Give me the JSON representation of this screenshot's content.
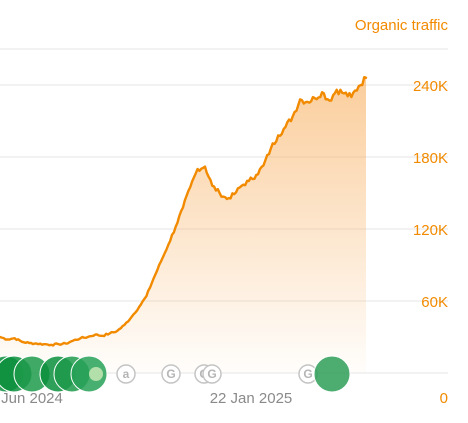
{
  "chart_data": {
    "type": "area",
    "ylabel": "Organic traffic",
    "y_ticks": [
      "240K",
      "180K",
      "120K",
      "60K",
      "0"
    ],
    "y_tick_values": [
      240000,
      180000,
      120000,
      60000,
      0
    ],
    "ylim": [
      0,
      270000
    ],
    "x_tick_labels": [
      "Jun 2024",
      "22 Jan 2025"
    ],
    "grid": true,
    "y_axis_position": "right",
    "color": "#f28a00",
    "series": [
      {
        "values": [
          30000,
          28000,
          29000,
          26000,
          25000,
          24500,
          24000,
          23500,
          24000,
          24500,
          27000,
          29000,
          30000,
          32000,
          31000,
          33000,
          35000,
          40000,
          47000,
          55000,
          64000,
          79000,
          93000,
          107000,
          122000,
          138000,
          155000,
          170000,
          172000,
          156000,
          150000,
          145000,
          149000,
          156000,
          160000,
          165000,
          173000,
          187000,
          198000,
          205000,
          214000,
          228000,
          226000,
          229000,
          234000,
          227000,
          236000,
          233000,
          230000,
          239000,
          246000
        ]
      }
    ],
    "markers": [
      {
        "kind": "update",
        "size": "large",
        "color": "#0a8f3c"
      },
      {
        "kind": "update",
        "size": "large",
        "color": "#0a8f3c"
      },
      {
        "kind": "update",
        "size": "large",
        "color": "#1d9a4b"
      },
      {
        "kind": "update",
        "size": "large",
        "color": "#0a8f3c"
      },
      {
        "kind": "update",
        "size": "large",
        "color": "#1d9a4b"
      },
      {
        "kind": "update",
        "size": "large",
        "color": "#27a157"
      },
      {
        "kind": "icon",
        "glyph": "a"
      },
      {
        "kind": "icon",
        "glyph": "G"
      },
      {
        "kind": "icon",
        "glyph": "G"
      },
      {
        "kind": "icon",
        "glyph": "G"
      },
      {
        "kind": "icon",
        "glyph": "G"
      },
      {
        "kind": "update",
        "size": "large",
        "color": "#2e9e57"
      }
    ]
  }
}
